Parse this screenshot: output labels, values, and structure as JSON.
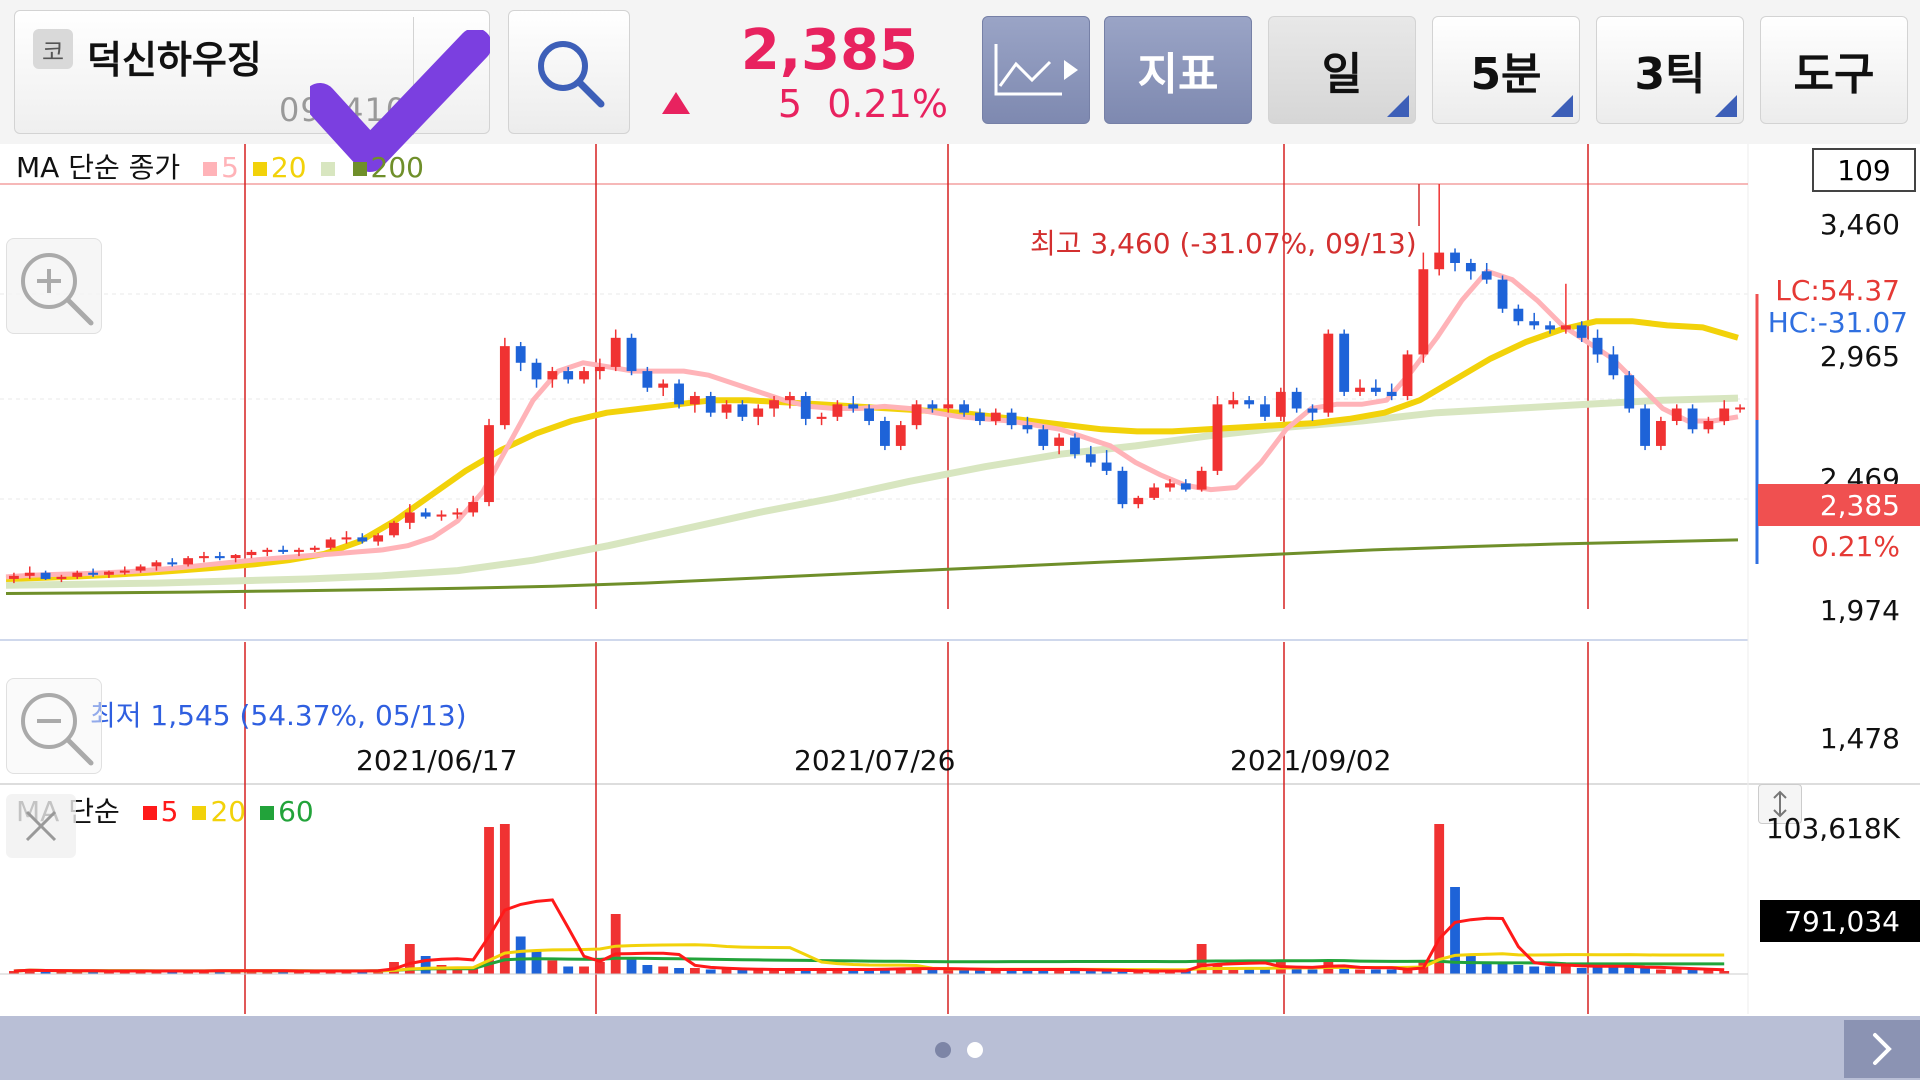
{
  "header": {
    "market_badge": "코",
    "stock_name": "덕신하우징",
    "stock_code": "090410",
    "price": "2,385",
    "change": "5",
    "change_pct": "0.21%",
    "buttons": {
      "chart_type_icon": "line-chart-icon",
      "indicator": "지표",
      "period_day": "일",
      "period_min": "5분",
      "period_tick": "3틱",
      "tools": "도구"
    }
  },
  "price_panel": {
    "legend_title": "MA 단순 종가",
    "legend_items": [
      {
        "label": "5",
        "color": "#ffb3b8"
      },
      {
        "label": "20",
        "color": "#f2d20a"
      },
      {
        "label": "",
        "color": "#d8e6c0"
      },
      {
        "label": "200",
        "color": "#6f8f2a"
      }
    ],
    "visible_count": "109",
    "axis_ticks": [
      "3,460",
      "2,965",
      "2,469",
      "1,974",
      "1,478"
    ],
    "current_price_tag": "2,385",
    "current_pct_tag": "0.21%",
    "lc_label": "LC:54.37",
    "hc_label": "HC:-31.07",
    "high_annotation": "최고 3,460 (-31.07%, 09/13)",
    "low_annotation": "최저 1,545 (54.37%, 05/13)",
    "dates": [
      "2021/06/17",
      "2021/07/26",
      "2021/09/02"
    ]
  },
  "volume_panel": {
    "legend_title": "MA 단순",
    "legend_items": [
      {
        "label": "5",
        "color": "#ff1a1a"
      },
      {
        "label": "20",
        "color": "#f2d20a"
      },
      {
        "label": "60",
        "color": "#22a33a"
      }
    ],
    "axis_max": "103,618K",
    "current_volume_tag": "791,034"
  },
  "chart_data": {
    "type": "candlestick",
    "price_range": [
      1478,
      3460
    ],
    "candles": [
      [
        1560,
        1590,
        1540,
        1575
      ],
      [
        1575,
        1620,
        1560,
        1590
      ],
      [
        1590,
        1600,
        1555,
        1560
      ],
      [
        1560,
        1580,
        1545,
        1570
      ],
      [
        1570,
        1600,
        1560,
        1590
      ],
      [
        1590,
        1610,
        1570,
        1580
      ],
      [
        1580,
        1600,
        1565,
        1595
      ],
      [
        1595,
        1620,
        1580,
        1600
      ],
      [
        1600,
        1630,
        1590,
        1620
      ],
      [
        1620,
        1650,
        1600,
        1640
      ],
      [
        1640,
        1660,
        1620,
        1630
      ],
      [
        1630,
        1670,
        1620,
        1660
      ],
      [
        1660,
        1690,
        1640,
        1670
      ],
      [
        1670,
        1690,
        1650,
        1660
      ],
      [
        1660,
        1680,
        1640,
        1675
      ],
      [
        1675,
        1700,
        1660,
        1690
      ],
      [
        1690,
        1710,
        1670,
        1700
      ],
      [
        1700,
        1720,
        1680,
        1690
      ],
      [
        1690,
        1710,
        1670,
        1700
      ],
      [
        1700,
        1720,
        1690,
        1710
      ],
      [
        1710,
        1760,
        1700,
        1750
      ],
      [
        1750,
        1790,
        1730,
        1760
      ],
      [
        1760,
        1780,
        1730,
        1740
      ],
      [
        1740,
        1780,
        1720,
        1770
      ],
      [
        1770,
        1840,
        1760,
        1830
      ],
      [
        1830,
        1920,
        1800,
        1880
      ],
      [
        1880,
        1900,
        1850,
        1860
      ],
      [
        1860,
        1890,
        1840,
        1870
      ],
      [
        1870,
        1900,
        1850,
        1880
      ],
      [
        1880,
        1960,
        1860,
        1930
      ],
      [
        1930,
        2330,
        1910,
        2300
      ],
      [
        2300,
        2720,
        2280,
        2680
      ],
      [
        2680,
        2700,
        2560,
        2600
      ],
      [
        2600,
        2620,
        2480,
        2520
      ],
      [
        2520,
        2580,
        2480,
        2560
      ],
      [
        2560,
        2580,
        2500,
        2520
      ],
      [
        2520,
        2580,
        2500,
        2560
      ],
      [
        2560,
        2620,
        2520,
        2580
      ],
      [
        2580,
        2760,
        2560,
        2720
      ],
      [
        2720,
        2740,
        2540,
        2560
      ],
      [
        2560,
        2580,
        2460,
        2480
      ],
      [
        2480,
        2520,
        2440,
        2500
      ],
      [
        2500,
        2520,
        2380,
        2400
      ],
      [
        2400,
        2460,
        2360,
        2440
      ],
      [
        2440,
        2460,
        2340,
        2360
      ],
      [
        2360,
        2420,
        2330,
        2400
      ],
      [
        2400,
        2420,
        2320,
        2340
      ],
      [
        2340,
        2400,
        2300,
        2380
      ],
      [
        2380,
        2440,
        2340,
        2420
      ],
      [
        2420,
        2460,
        2380,
        2440
      ],
      [
        2440,
        2460,
        2300,
        2330
      ],
      [
        2330,
        2360,
        2300,
        2340
      ],
      [
        2340,
        2420,
        2320,
        2400
      ],
      [
        2400,
        2440,
        2360,
        2380
      ],
      [
        2380,
        2400,
        2300,
        2320
      ],
      [
        2320,
        2340,
        2180,
        2200
      ],
      [
        2200,
        2320,
        2180,
        2300
      ],
      [
        2300,
        2420,
        2280,
        2400
      ],
      [
        2400,
        2420,
        2360,
        2380
      ],
      [
        2380,
        2420,
        2360,
        2400
      ],
      [
        2400,
        2420,
        2340,
        2360
      ],
      [
        2360,
        2380,
        2300,
        2320
      ],
      [
        2320,
        2380,
        2300,
        2360
      ],
      [
        2360,
        2380,
        2280,
        2300
      ],
      [
        2300,
        2340,
        2260,
        2280
      ],
      [
        2280,
        2300,
        2180,
        2200
      ],
      [
        2200,
        2260,
        2160,
        2240
      ],
      [
        2240,
        2260,
        2140,
        2160
      ],
      [
        2160,
        2200,
        2100,
        2120
      ],
      [
        2120,
        2180,
        2060,
        2080
      ],
      [
        2080,
        2100,
        1900,
        1920
      ],
      [
        1920,
        1960,
        1900,
        1950
      ],
      [
        1950,
        2020,
        1940,
        2000
      ],
      [
        2000,
        2040,
        1980,
        2020
      ],
      [
        2020,
        2040,
        1980,
        1990
      ],
      [
        1990,
        2100,
        1980,
        2080
      ],
      [
        2080,
        2440,
        2060,
        2400
      ],
      [
        2400,
        2460,
        2380,
        2420
      ],
      [
        2420,
        2440,
        2380,
        2400
      ],
      [
        2400,
        2440,
        2320,
        2340
      ],
      [
        2340,
        2480,
        2320,
        2460
      ],
      [
        2460,
        2480,
        2360,
        2380
      ],
      [
        2380,
        2400,
        2320,
        2360
      ],
      [
        2360,
        2760,
        2340,
        2740
      ],
      [
        2740,
        2760,
        2440,
        2460
      ],
      [
        2460,
        2520,
        2440,
        2480
      ],
      [
        2480,
        2520,
        2440,
        2460
      ],
      [
        2460,
        2500,
        2420,
        2440
      ],
      [
        2440,
        2660,
        2420,
        2640
      ],
      [
        2640,
        3130,
        2600,
        3050
      ],
      [
        3050,
        3460,
        3020,
        3130
      ],
      [
        3130,
        3150,
        3040,
        3080
      ],
      [
        3080,
        3100,
        3000,
        3040
      ],
      [
        3040,
        3080,
        2980,
        3000
      ],
      [
        3000,
        3020,
        2840,
        2860
      ],
      [
        2860,
        2880,
        2780,
        2800
      ],
      [
        2800,
        2840,
        2760,
        2780
      ],
      [
        2780,
        2800,
        2740,
        2760
      ],
      [
        2760,
        2980,
        2740,
        2780
      ],
      [
        2780,
        2800,
        2700,
        2720
      ],
      [
        2720,
        2760,
        2600,
        2640
      ],
      [
        2640,
        2680,
        2520,
        2540
      ],
      [
        2540,
        2560,
        2360,
        2380
      ],
      [
        2380,
        2400,
        2180,
        2200
      ],
      [
        2200,
        2340,
        2180,
        2320
      ],
      [
        2320,
        2400,
        2300,
        2380
      ],
      [
        2380,
        2400,
        2260,
        2280
      ],
      [
        2280,
        2340,
        2260,
        2320
      ],
      [
        2320,
        2420,
        2300,
        2380
      ],
      [
        2380,
        2400,
        2360,
        2385
      ]
    ],
    "ma_lines": {
      "ma5": [
        1570,
        1578,
        1582,
        1585,
        1590,
        1596,
        1605,
        1615,
        1628,
        1640,
        1652,
        1662,
        1672,
        1680,
        1690,
        1700,
        1720,
        1760,
        1840,
        1980,
        2200,
        2420,
        2560,
        2600,
        2580,
        2560,
        2560,
        2560,
        2540,
        2500,
        2460,
        2420,
        2390,
        2380,
        2380,
        2390,
        2380,
        2360,
        2340,
        2330,
        2320,
        2300,
        2280,
        2240,
        2200,
        2120,
        2060,
        2010,
        1990,
        2000,
        2120,
        2280,
        2380,
        2400,
        2400,
        2420,
        2560,
        2720,
        2900,
        3040,
        3000,
        2900,
        2780,
        2700,
        2620,
        2500,
        2380,
        2320,
        2320,
        2340
      ],
      "ma20": [
        1560,
        1565,
        1572,
        1580,
        1590,
        1602,
        1615,
        1630,
        1650,
        1680,
        1740,
        1840,
        1960,
        2080,
        2180,
        2260,
        2320,
        2360,
        2380,
        2400,
        2420,
        2420,
        2410,
        2400,
        2390,
        2380,
        2370,
        2360,
        2340,
        2320,
        2300,
        2280,
        2270,
        2270,
        2280,
        2290,
        2300,
        2310,
        2330,
        2360,
        2420,
        2520,
        2620,
        2700,
        2760,
        2800,
        2800,
        2780,
        2770,
        2720
      ],
      "ma60": [
        1530,
        1535,
        1540,
        1550,
        1560,
        1575,
        1600,
        1650,
        1720,
        1800,
        1880,
        1950,
        2030,
        2100,
        2160,
        2200,
        2250,
        2290,
        2320,
        2360,
        2380,
        2400,
        2420,
        2430
      ],
      "ma200": [
        1490,
        1493,
        1497,
        1502,
        1508,
        1515,
        1525,
        1540,
        1560,
        1580,
        1600,
        1620,
        1640,
        1660,
        1680,
        1700,
        1715,
        1728,
        1738,
        1748
      ]
    },
    "volumes": [
      2,
      3,
      2,
      2,
      2,
      2,
      2,
      2,
      2,
      2,
      2,
      2,
      2,
      3,
      2,
      2,
      2,
      2,
      2,
      2,
      2,
      2,
      2,
      3,
      8,
      20,
      12,
      6,
      5,
      4,
      98,
      100,
      25,
      15,
      9,
      5,
      5,
      8,
      40,
      10,
      6,
      5,
      4,
      4,
      3,
      3,
      3,
      3,
      3,
      3,
      3,
      3,
      3,
      3,
      3,
      4,
      4,
      4,
      3,
      3,
      3,
      3,
      3,
      3,
      3,
      3,
      3,
      3,
      2,
      2,
      2,
      2,
      2,
      2,
      2,
      20,
      6,
      4,
      4,
      3,
      8,
      4,
      3,
      8,
      4,
      3,
      3,
      3,
      3,
      8,
      100,
      58,
      12,
      8,
      7,
      6,
      5,
      5,
      7,
      4,
      5,
      5,
      5,
      4,
      3,
      3,
      3,
      3,
      2
    ]
  }
}
